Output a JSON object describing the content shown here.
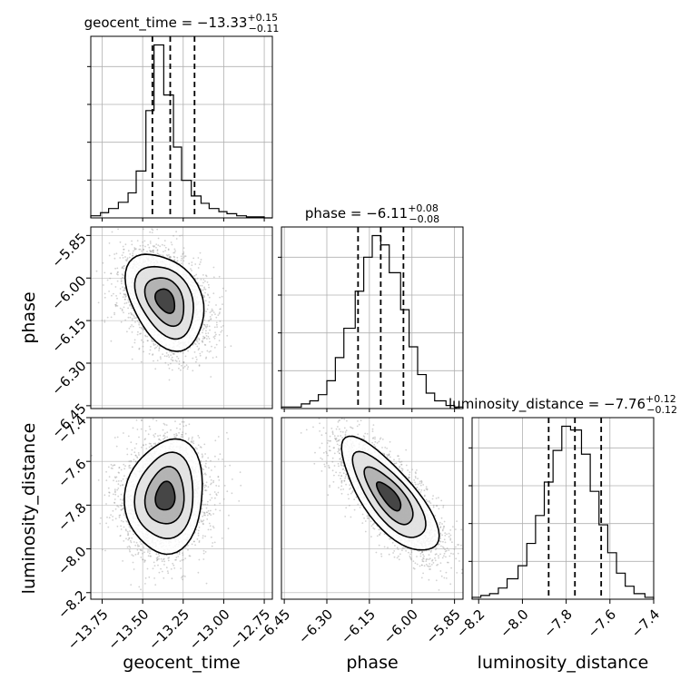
{
  "chart_data": {
    "type": "corner",
    "parameters": [
      "geocent_time",
      "phase",
      "luminosity_distance"
    ],
    "titles": [
      {
        "param": "geocent_time",
        "prefix": "geocent_time = ",
        "median": "−13.33",
        "plus": "+0.15",
        "minus": "−0.11"
      },
      {
        "param": "phase",
        "prefix": "phase = ",
        "median": "−6.11",
        "plus": "+0.08",
        "minus": "−0.08"
      },
      {
        "param": "luminosity_distance",
        "prefix": "luminosity_distance = ",
        "median": "−7.76",
        "plus": "+0.12",
        "minus": "−0.12"
      }
    ],
    "ranges": {
      "geocent_time": [
        -13.82,
        -12.7
      ],
      "phase": [
        -6.46,
        -5.82
      ],
      "luminosity_distance": [
        -8.23,
        -7.4
      ]
    },
    "ticks": {
      "geocent_time": [
        {
          "v": -13.75,
          "label": "−13.75"
        },
        {
          "v": -13.5,
          "label": "−13.50"
        },
        {
          "v": -13.25,
          "label": "−13.25"
        },
        {
          "v": -13.0,
          "label": "−13.00"
        },
        {
          "v": -12.75,
          "label": "−12.75"
        }
      ],
      "phase": [
        {
          "v": -6.45,
          "label": "−6.45"
        },
        {
          "v": -6.3,
          "label": "−6.30"
        },
        {
          "v": -6.15,
          "label": "−6.15"
        },
        {
          "v": -6.0,
          "label": "−6.00"
        },
        {
          "v": -5.85,
          "label": "−5.85"
        }
      ],
      "luminosity_distance": [
        {
          "v": -8.2,
          "label": "−8.2"
        },
        {
          "v": -8.0,
          "label": "−8.0"
        },
        {
          "v": -7.8,
          "label": "−7.8"
        },
        {
          "v": -7.6,
          "label": "−7.6"
        },
        {
          "v": -7.4,
          "label": "−7.4"
        }
      ]
    },
    "marginals": {
      "geocent_time": {
        "bin_edges": [
          -13.82,
          -13.76,
          -13.71,
          -13.65,
          -13.59,
          -13.54,
          -13.48,
          -13.43,
          -13.37,
          -13.31,
          -13.26,
          -13.2,
          -13.14,
          -13.09,
          -13.03,
          -12.98,
          -12.92,
          -12.86,
          -12.81,
          -12.75,
          -12.7
        ],
        "counts": [
          2,
          5,
          9,
          15,
          24,
          45,
          103,
          166,
          118,
          68,
          36,
          21,
          14,
          9,
          6,
          4,
          2,
          1,
          1,
          0
        ],
        "quantiles": [
          -13.44,
          -13.33,
          -13.18
        ]
      },
      "phase": {
        "bin_edges": [
          -6.46,
          -6.43,
          -6.39,
          -6.36,
          -6.33,
          -6.3,
          -6.27,
          -6.24,
          -6.2,
          -6.17,
          -6.14,
          -6.11,
          -6.08,
          -6.04,
          -6.01,
          -5.98,
          -5.95,
          -5.92,
          -5.88,
          -5.85,
          -5.82
        ],
        "counts": [
          1,
          1,
          3,
          5,
          9,
          18,
          33,
          52,
          76,
          98,
          112,
          106,
          88,
          64,
          40,
          22,
          10,
          5,
          2,
          1
        ],
        "quantiles": [
          -6.19,
          -6.11,
          -6.03
        ]
      },
      "luminosity_distance": {
        "bin_edges": [
          -8.23,
          -8.19,
          -8.15,
          -8.11,
          -8.07,
          -8.02,
          -7.98,
          -7.94,
          -7.9,
          -7.86,
          -7.82,
          -7.78,
          -7.73,
          -7.69,
          -7.65,
          -7.61,
          -7.57,
          -7.53,
          -7.49,
          -7.44,
          -7.4
        ],
        "counts": [
          1,
          2,
          3,
          6,
          11,
          18,
          30,
          45,
          63,
          80,
          93,
          91,
          78,
          58,
          40,
          25,
          14,
          7,
          3,
          1
        ],
        "quantiles": [
          -7.88,
          -7.76,
          -7.64
        ]
      }
    },
    "joint": {
      "correlations": {
        "phase|geocent_time": -0.35,
        "luminosity_distance|geocent_time": 0.1,
        "luminosity_distance|phase": -0.75
      },
      "centers": {
        "geocent_time": -13.36,
        "phase": -6.08,
        "luminosity_distance": -7.76
      },
      "spreads": {
        "geocent_time": 0.12,
        "phase": 0.085,
        "luminosity_distance": 0.13
      },
      "n_samples": 3500,
      "contour_levels_sigma": [
        0.5,
        1.0,
        1.5,
        2.0
      ]
    },
    "axis_labels": {
      "x": [
        "geocent_time",
        "phase",
        "luminosity_distance"
      ],
      "y": [
        "phase",
        "luminosity_distance"
      ]
    },
    "grid": true,
    "colors": {
      "line": "#000000",
      "grid": "#b0b0b0",
      "points": "#9a9a9a",
      "fill": "#333333"
    }
  }
}
